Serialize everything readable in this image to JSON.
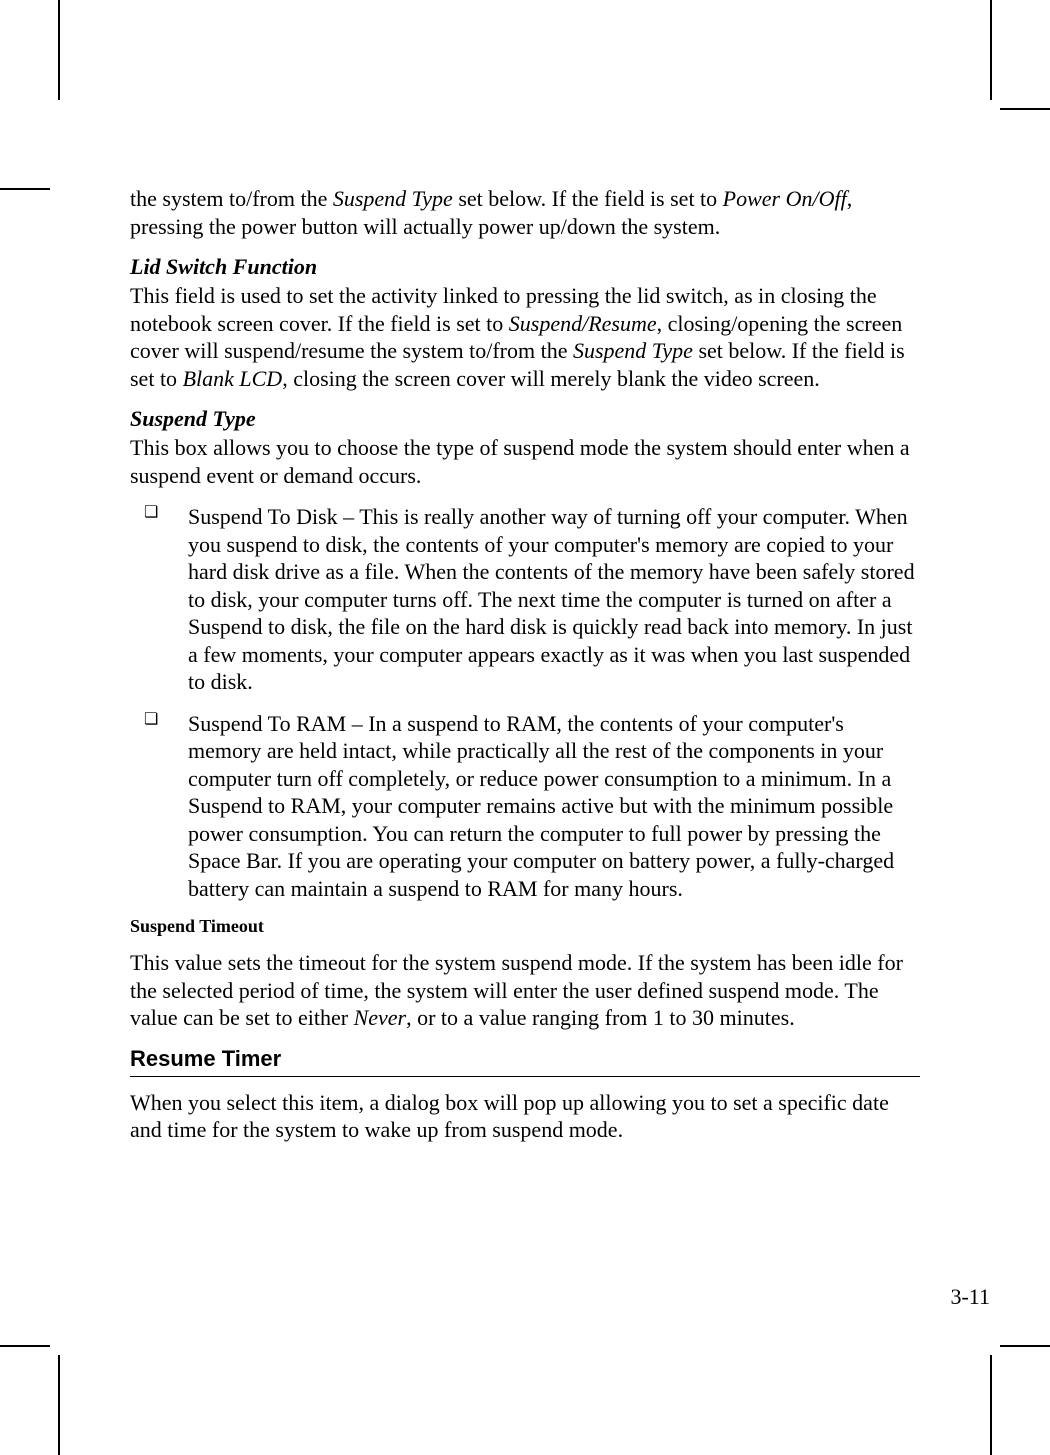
{
  "intro": {
    "p1_a": "the system to/from the ",
    "p1_i1": "Suspend Type",
    "p1_b": " set below. If the field is set to ",
    "p1_i2": "Power On/Off",
    "p1_c": ", pressing the power button will actually power up/down the system."
  },
  "lid": {
    "heading": "Lid Switch Function",
    "p_a": "This field is used to set the activity linked to pressing the lid switch, as in closing the notebook screen cover. If the field is set to ",
    "p_i1": "Suspend/Resume",
    "p_b": ", closing/opening the screen cover will suspend/resume the system to/from the ",
    "p_i2": "Suspend Type",
    "p_c": " set below. If the field is set to ",
    "p_i3": "Blank LCD",
    "p_d": ", closing the screen cover will merely blank the video screen."
  },
  "suspend": {
    "heading": "Suspend Type",
    "intro": "This box allows you to choose the type of suspend mode the system should enter when a suspend event or demand occurs.",
    "items": [
      "Suspend To Disk – This is really another way of turning off your computer. When you suspend to disk, the contents of your computer's memory are copied to your hard disk drive as a file. When the contents of the memory have been safely stored to disk, your computer turns off. The next time the computer is turned on after a Suspend to disk, the file on the hard disk is quickly read back into memory. In just a few moments, your computer appears exactly as it was when you last suspended to disk.",
      "Suspend To RAM – In a suspend to RAM, the contents of your computer's memory are held intact, while practically all the rest of the components in your computer turn off completely, or reduce power consumption to a minimum. In a Suspend to RAM, your computer remains active but with the minimum possible power consumption. You can return the computer to full power by pressing the Space Bar. If you are operating your computer on battery power, a fully-charged battery can maintain a suspend to RAM for many hours."
    ]
  },
  "timeout": {
    "heading": "Suspend Timeout",
    "p_a": "This value sets the timeout for the system suspend mode. If the system has been idle for the selected period of time, the system will enter the user defined suspend mode. The value can be set to either ",
    "p_i1": "Never",
    "p_b": ", or to a value ranging from 1 to 30 minutes."
  },
  "resume": {
    "heading": "Resume Timer",
    "p": "When you select this item, a dialog box will pop up allowing you to set a specific date and time for the system to wake up from suspend mode."
  },
  "page_number": "3-11"
}
